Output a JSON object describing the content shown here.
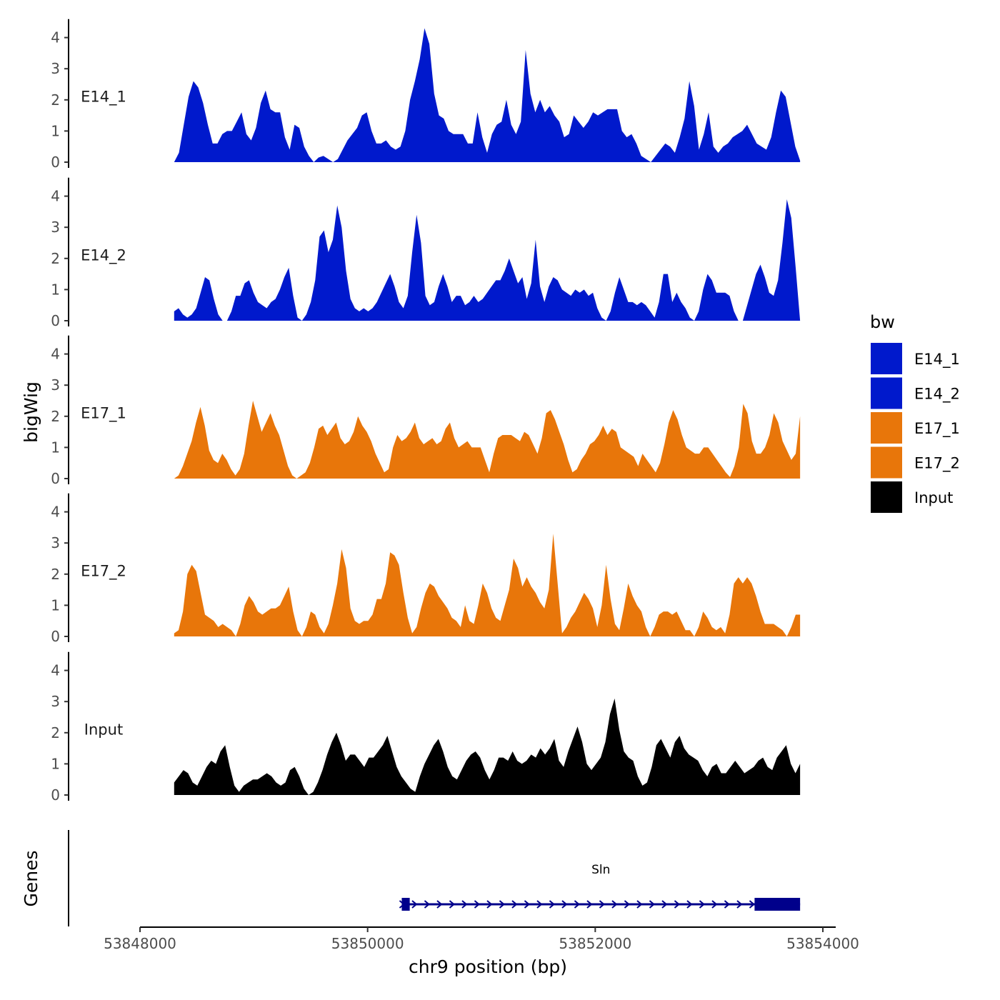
{
  "chart_data": {
    "type": "area",
    "ylabel": "bigWig",
    "xlabel": "chr9 position (bp)",
    "genes_label": "Genes",
    "xlim": [
      53848000,
      53854000
    ],
    "x_ticks": [
      53848000,
      53850000,
      53852000,
      53854000
    ],
    "x_tick_labels": [
      "53848000",
      "53850000",
      "53852000",
      "53854000"
    ],
    "ylim": [
      0,
      4.5
    ],
    "y_ticks": [
      0,
      1,
      2,
      3,
      4
    ],
    "y_tick_labels": [
      "0",
      "1",
      "2",
      "3",
      "4"
    ],
    "data_range": [
      53848300,
      53853800
    ],
    "legend": {
      "title": "bw",
      "position": "right",
      "entries": [
        {
          "label": "E14_1",
          "color": "#0019CC"
        },
        {
          "label": "E14_2",
          "color": "#0019CC"
        },
        {
          "label": "E17_1",
          "color": "#E8760A"
        },
        {
          "label": "E17_2",
          "color": "#E8760A"
        },
        {
          "label": "Input",
          "color": "#000000"
        }
      ]
    },
    "series": [
      {
        "name": "E14_1",
        "color": "#0019CC",
        "values": [
          0,
          0.3,
          1.2,
          2.1,
          2.6,
          2.4,
          1.9,
          1.2,
          0.6,
          0.6,
          0.9,
          1.0,
          1.0,
          1.3,
          1.6,
          0.9,
          0.7,
          1.1,
          1.9,
          2.3,
          1.7,
          1.6,
          1.6,
          0.8,
          0.4,
          1.2,
          1.1,
          0.5,
          0.2,
          0,
          0.15,
          0.2,
          0.1,
          0,
          0.1,
          0.4,
          0.7,
          0.9,
          1.1,
          1.5,
          1.6,
          1.0,
          0.6,
          0.6,
          0.7,
          0.5,
          0.4,
          0.5,
          1.0,
          2.0,
          2.6,
          3.3,
          4.3,
          3.8,
          2.2,
          1.5,
          1.4,
          1.0,
          0.9,
          0.9,
          0.9,
          0.6,
          0.6,
          1.6,
          0.8,
          0.3,
          0.9,
          1.2,
          1.3,
          2.0,
          1.2,
          0.9,
          1.3,
          3.6,
          2.2,
          1.6,
          2.0,
          1.6,
          1.8,
          1.5,
          1.3,
          0.8,
          0.9,
          1.5,
          1.3,
          1.1,
          1.3,
          1.6,
          1.5,
          1.6,
          1.7,
          1.7,
          1.7,
          1.0,
          0.8,
          0.9,
          0.6,
          0.2,
          0.1,
          0,
          0.2,
          0.4,
          0.6,
          0.5,
          0.3,
          0.8,
          1.4,
          2.6,
          1.8,
          0.4,
          0.9,
          1.6,
          0.5,
          0.3,
          0.5,
          0.6,
          0.8,
          0.9,
          1.0,
          1.2,
          0.9,
          0.6,
          0.5,
          0.4,
          0.8,
          1.6,
          2.3,
          2.1,
          1.3,
          0.5,
          0.05
        ]
      },
      {
        "name": "E14_2",
        "color": "#0019CC",
        "values": [
          0.3,
          0.4,
          0.2,
          0.1,
          0.2,
          0.4,
          0.9,
          1.4,
          1.3,
          0.7,
          0.2,
          0,
          0,
          0.3,
          0.8,
          0.8,
          1.2,
          1.3,
          0.9,
          0.6,
          0.5,
          0.4,
          0.6,
          0.7,
          1.0,
          1.4,
          1.7,
          0.8,
          0.1,
          0,
          0.2,
          0.6,
          1.3,
          2.7,
          2.9,
          2.2,
          2.6,
          3.7,
          3.0,
          1.6,
          0.7,
          0.4,
          0.3,
          0.4,
          0.3,
          0.4,
          0.6,
          0.9,
          1.2,
          1.5,
          1.1,
          0.6,
          0.4,
          0.8,
          2.2,
          3.4,
          2.5,
          0.8,
          0.5,
          0.6,
          1.1,
          1.5,
          1.1,
          0.6,
          0.8,
          0.8,
          0.5,
          0.6,
          0.8,
          0.6,
          0.7,
          0.9,
          1.1,
          1.3,
          1.3,
          1.6,
          2.0,
          1.6,
          1.2,
          1.4,
          0.7,
          1.2,
          2.6,
          1.1,
          0.6,
          1.1,
          1.4,
          1.3,
          1.0,
          0.9,
          0.8,
          1.0,
          0.9,
          1.0,
          0.8,
          0.9,
          0.4,
          0.1,
          0,
          0.3,
          0.9,
          1.4,
          1.0,
          0.6,
          0.6,
          0.5,
          0.6,
          0.5,
          0.3,
          0.1,
          0.6,
          1.5,
          1.5,
          0.6,
          0.9,
          0.6,
          0.4,
          0.1,
          0,
          0.3,
          1.0,
          1.5,
          1.3,
          0.9,
          0.9,
          0.9,
          0.8,
          0.3,
          0,
          0,
          0.5,
          1.0,
          1.5,
          1.8,
          1.4,
          0.9,
          0.8,
          1.3,
          2.5,
          3.9,
          3.3,
          1.7,
          0
        ]
      },
      {
        "name": "E17_1",
        "color": "#E8760A",
        "values": [
          0,
          0.1,
          0.4,
          0.8,
          1.2,
          1.8,
          2.3,
          1.7,
          0.9,
          0.6,
          0.5,
          0.8,
          0.6,
          0.3,
          0.1,
          0.3,
          0.8,
          1.7,
          2.5,
          2.0,
          1.5,
          1.8,
          2.1,
          1.7,
          1.4,
          0.9,
          0.4,
          0.1,
          0,
          0.1,
          0.2,
          0.5,
          1.0,
          1.6,
          1.7,
          1.4,
          1.6,
          1.8,
          1.3,
          1.1,
          1.2,
          1.5,
          2.0,
          1.7,
          1.5,
          1.2,
          0.8,
          0.5,
          0.2,
          0.3,
          1.0,
          1.4,
          1.2,
          1.3,
          1.5,
          1.8,
          1.3,
          1.1,
          1.2,
          1.3,
          1.1,
          1.2,
          1.6,
          1.8,
          1.3,
          1.0,
          1.1,
          1.2,
          1.0,
          1.0,
          1.0,
          0.6,
          0.2,
          0.8,
          1.3,
          1.4,
          1.4,
          1.4,
          1.3,
          1.2,
          1.5,
          1.4,
          1.1,
          0.8,
          1.3,
          2.1,
          2.2,
          1.9,
          1.5,
          1.1,
          0.6,
          0.2,
          0.3,
          0.6,
          0.8,
          1.1,
          1.2,
          1.4,
          1.7,
          1.4,
          1.6,
          1.5,
          1.0,
          0.9,
          0.8,
          0.7,
          0.4,
          0.8,
          0.6,
          0.4,
          0.2,
          0.5,
          1.1,
          1.8,
          2.2,
          1.9,
          1.4,
          1.0,
          0.9,
          0.8,
          0.8,
          1.0,
          1.0,
          0.8,
          0.6,
          0.4,
          0.2,
          0.05,
          0.4,
          1.0,
          2.4,
          2.1,
          1.2,
          0.8,
          0.8,
          1.0,
          1.4,
          2.1,
          1.8,
          1.2,
          0.9,
          0.6,
          0.8,
          2.0
        ]
      },
      {
        "name": "E17_2",
        "color": "#E8760A",
        "values": [
          0.1,
          0.2,
          0.8,
          2.0,
          2.3,
          2.1,
          1.4,
          0.7,
          0.6,
          0.5,
          0.3,
          0.4,
          0.3,
          0.2,
          0,
          0.4,
          1.0,
          1.3,
          1.1,
          0.8,
          0.7,
          0.8,
          0.9,
          0.9,
          1.0,
          1.3,
          1.6,
          0.8,
          0.2,
          0,
          0.3,
          0.8,
          0.7,
          0.3,
          0.1,
          0.4,
          1.0,
          1.7,
          2.8,
          2.2,
          0.9,
          0.5,
          0.4,
          0.5,
          0.5,
          0.7,
          1.2,
          1.2,
          1.7,
          2.7,
          2.6,
          2.3,
          1.4,
          0.6,
          0.1,
          0.3,
          0.9,
          1.4,
          1.7,
          1.6,
          1.3,
          1.1,
          0.9,
          0.6,
          0.5,
          0.3,
          1.0,
          0.5,
          0.4,
          1.0,
          1.7,
          1.4,
          0.9,
          0.6,
          0.5,
          1.0,
          1.5,
          2.5,
          2.2,
          1.6,
          1.9,
          1.6,
          1.4,
          1.1,
          0.9,
          1.5,
          3.3,
          1.7,
          0.1,
          0.3,
          0.6,
          0.8,
          1.1,
          1.4,
          1.2,
          0.9,
          0.3,
          1.0,
          2.3,
          1.2,
          0.4,
          0.2,
          0.9,
          1.7,
          1.3,
          1.0,
          0.8,
          0.3,
          0,
          0.3,
          0.7,
          0.8,
          0.8,
          0.7,
          0.8,
          0.5,
          0.2,
          0.2,
          0,
          0.3,
          0.8,
          0.6,
          0.3,
          0.2,
          0.3,
          0.1,
          0.7,
          1.7,
          1.9,
          1.7,
          1.9,
          1.7,
          1.3,
          0.8,
          0.4,
          0.4,
          0.4,
          0.3,
          0.2,
          0,
          0.3,
          0.7,
          0.7
        ]
      },
      {
        "name": "Input",
        "color": "#000000",
        "values": [
          0.4,
          0.6,
          0.8,
          0.7,
          0.4,
          0.3,
          0.6,
          0.9,
          1.1,
          1.0,
          1.4,
          1.6,
          0.9,
          0.3,
          0.1,
          0.3,
          0.4,
          0.5,
          0.5,
          0.6,
          0.7,
          0.6,
          0.4,
          0.3,
          0.4,
          0.8,
          0.9,
          0.6,
          0.2,
          0,
          0.1,
          0.4,
          0.8,
          1.3,
          1.7,
          2.0,
          1.6,
          1.1,
          1.3,
          1.3,
          1.1,
          0.9,
          1.2,
          1.2,
          1.4,
          1.6,
          1.9,
          1.4,
          0.9,
          0.6,
          0.4,
          0.2,
          0.1,
          0.6,
          1.0,
          1.3,
          1.6,
          1.8,
          1.4,
          0.9,
          0.6,
          0.5,
          0.8,
          1.1,
          1.3,
          1.4,
          1.2,
          0.8,
          0.5,
          0.8,
          1.2,
          1.2,
          1.1,
          1.4,
          1.1,
          1.0,
          1.1,
          1.3,
          1.2,
          1.5,
          1.3,
          1.5,
          1.8,
          1.1,
          0.9,
          1.4,
          1.8,
          2.2,
          1.7,
          1.0,
          0.8,
          1.0,
          1.2,
          1.7,
          2.6,
          3.1,
          2.1,
          1.4,
          1.2,
          1.1,
          0.6,
          0.3,
          0.4,
          0.9,
          1.6,
          1.8,
          1.5,
          1.2,
          1.7,
          1.9,
          1.5,
          1.3,
          1.2,
          1.1,
          0.8,
          0.6,
          0.9,
          1.0,
          0.7,
          0.7,
          0.9,
          1.1,
          0.9,
          0.7,
          0.8,
          0.9,
          1.1,
          1.2,
          0.9,
          0.8,
          1.2,
          1.4,
          1.6,
          1.0,
          0.7,
          1.0
        ]
      }
    ],
    "genes": [
      {
        "name": "Sln",
        "start": 53850300,
        "end": 53853800,
        "strand": "+",
        "exons": [
          [
            53850300,
            53850370
          ],
          [
            53853400,
            53853800
          ]
        ],
        "color": "#00008B"
      }
    ]
  }
}
